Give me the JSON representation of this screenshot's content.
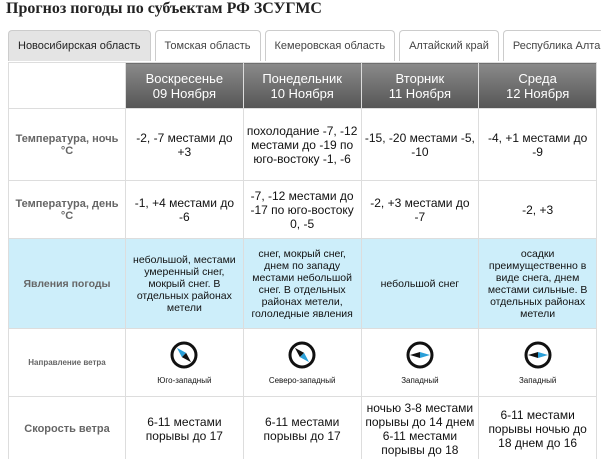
{
  "title": "Прогноз погоды по субъектам РФ ЗСУГМС",
  "tabs": [
    "Новосибирская область",
    "Томская область",
    "Кемеровская область",
    "Алтайский край",
    "Республика Алтай"
  ],
  "table": {
    "days": [
      {
        "day": "Воскресенье",
        "date": "09 Ноября"
      },
      {
        "day": "Понедельник",
        "date": "10 Ноября"
      },
      {
        "day": "Вторник",
        "date": "11 Ноября"
      },
      {
        "day": "Среда",
        "date": "12 Ноября"
      }
    ],
    "rows": [
      {
        "label": "Температура, ночь °С",
        "cells": [
          "-2, -7 местами до +3",
          "похолодание -7, -12 местами до -19 по юго-востоку -1, -6",
          "-15, -20 местами -5, -10",
          "-4, +1 местами до -9"
        ]
      },
      {
        "label": "Температура, день °С",
        "cells": [
          "-1, +4 местами до -6",
          "-7, -12 местами до -17 по юго-востоку 0, -5",
          "-2, +3 местами до -7",
          "-2, +3"
        ]
      },
      {
        "label": "Явления погоды",
        "cells": [
          "небольшой, местами умеренный снег, мокрый снег. В отдельных районах метели",
          "снег, мокрый снег, днем по западу местами небольшой снег. В отдельных районах метели, гололедные явления",
          "небольшой снег",
          "осадки преимущественно в виде снега, днем местами сильные. В отдельных районах метели"
        ]
      },
      {
        "label": "Направление ветра",
        "cells": [
          "Юго-западный",
          "Северо-западный",
          "Западный",
          "Западный"
        ]
      },
      {
        "label": "Скорость ветра",
        "cells": [
          "6-11 местами порывы до 17",
          "6-11 местами порывы до 17",
          "ночью 3-8 местами порывы до 14 днем 6-11 местами порывы до 18",
          "6-11 местами порывы ночью до 18 днем до 16"
        ]
      }
    ]
  }
}
